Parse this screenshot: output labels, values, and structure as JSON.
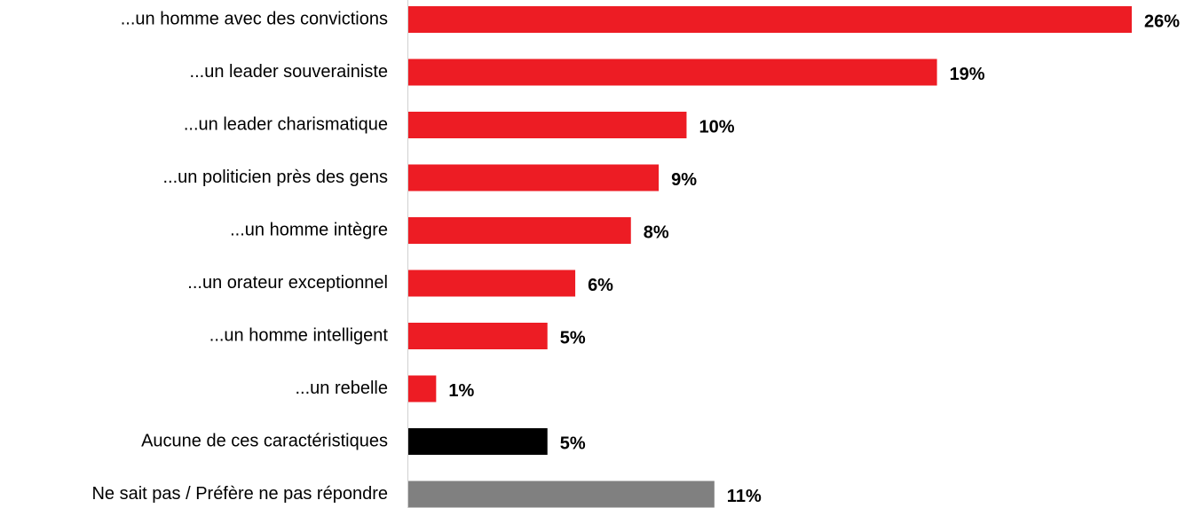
{
  "chart_data": {
    "type": "bar",
    "orientation": "horizontal",
    "categories": [
      "...un homme avec des convictions",
      "...un leader souverainiste",
      "...un leader charismatique",
      "...un politicien près des gens",
      "...un homme intègre",
      "...un orateur exceptionnel",
      "...un homme intelligent",
      "...un rebelle",
      "Aucune de ces caractéristiques",
      "Ne sait pas / Préfère ne pas répondre"
    ],
    "values": [
      26,
      19,
      10,
      9,
      8,
      6,
      5,
      1,
      5,
      11
    ],
    "value_labels": [
      "26%",
      "19%",
      "10%",
      "9%",
      "8%",
      "6%",
      "5%",
      "1%",
      "5%",
      "11%"
    ],
    "colors": [
      "#ed1c24",
      "#ed1c24",
      "#ed1c24",
      "#ed1c24",
      "#ed1c24",
      "#ed1c24",
      "#ed1c24",
      "#ed1c24",
      "#000000",
      "#808080"
    ]
  }
}
